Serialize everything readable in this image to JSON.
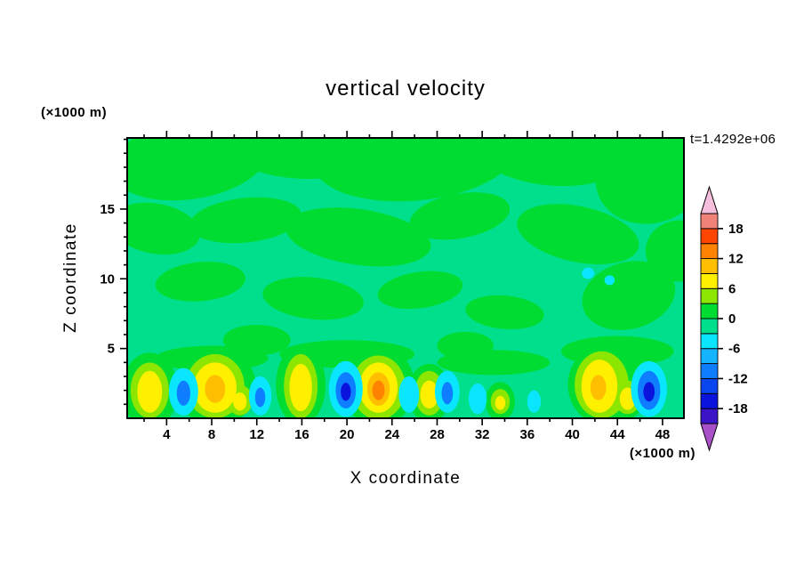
{
  "chart_data": {
    "type": "heatmap",
    "title": "vertical velocity",
    "annotation": "t=1.4292e+06",
    "xlabel": "X coordinate",
    "ylabel": "Z coordinate",
    "x_unit_label": "(×1000 m)",
    "y_unit_label": "(×1000 m)",
    "xlim": [
      0.5,
      49.9
    ],
    "ylim": [
      0,
      20.1
    ],
    "x_ticks": [
      4,
      8,
      12,
      16,
      20,
      24,
      28,
      32,
      36,
      40,
      44,
      48
    ],
    "y_ticks": [
      5,
      10,
      15
    ],
    "x_minor_step": 2,
    "y_minor_step": 1,
    "grid": false,
    "colorbar": {
      "position": "right",
      "labels": [
        18,
        12,
        6,
        0,
        -6,
        -12,
        -18
      ],
      "levels": [
        -21,
        -18,
        -15,
        -12,
        -9,
        -6,
        -3,
        0,
        3,
        6,
        9,
        12,
        15,
        18,
        21
      ],
      "band_colors_bottom_to_top": [
        "#3C14C8",
        "#0A14DC",
        "#0A46F0",
        "#0F7DFF",
        "#14B4FF",
        "#0AE6FF",
        "#00E08C",
        "#00DC32",
        "#8CE600",
        "#FFF000",
        "#FFBE00",
        "#FF8200",
        "#FF4600",
        "#F08278"
      ],
      "arrow_top_color": "#F5BEDC",
      "arrow_bottom_color": "#A850C8"
    },
    "field": {
      "background_color": "#00E08C",
      "palette": {
        "g": "#00DC32",
        "yg": "#8CE600",
        "y": "#FFF000",
        "oy": "#FFBE00",
        "o": "#FF8200",
        "c": "#0AE6FF",
        "b": "#0F7DFF",
        "db": "#0A14DC"
      },
      "patch_format": [
        "x",
        "z",
        "rx",
        "rz",
        "color_key",
        "rot_deg"
      ],
      "patches": [
        [
          6,
          18.5,
          7,
          2.8,
          "g",
          -8
        ],
        [
          15.5,
          19.6,
          7,
          2.4,
          "g",
          5
        ],
        [
          26,
          18.8,
          9,
          3.2,
          "g",
          -5
        ],
        [
          38,
          19.3,
          7,
          2.6,
          "g",
          6
        ],
        [
          47,
          17.4,
          5,
          3.4,
          "g",
          -18
        ],
        [
          3,
          13.6,
          4,
          1.8,
          "g",
          10
        ],
        [
          11,
          14.2,
          5,
          1.6,
          "g",
          -6
        ],
        [
          21,
          13,
          6.5,
          2,
          "g",
          8
        ],
        [
          30,
          14.5,
          4.5,
          1.6,
          "g",
          -10
        ],
        [
          40.5,
          13.2,
          5.5,
          2,
          "g",
          12
        ],
        [
          7,
          9.8,
          4,
          1.4,
          "g",
          -5
        ],
        [
          17,
          8.6,
          4.5,
          1.5,
          "g",
          6
        ],
        [
          26.5,
          9.2,
          3.8,
          1.3,
          "g",
          -8
        ],
        [
          34,
          7.6,
          3.5,
          1.2,
          "g",
          5
        ],
        [
          45,
          8.8,
          4.2,
          2.4,
          "g",
          -15
        ],
        [
          49.5,
          12,
          3,
          2.2,
          "g",
          0
        ],
        [
          12,
          5.6,
          3,
          1.1,
          "g",
          0
        ],
        [
          30.5,
          5.2,
          2.5,
          1,
          "g",
          0
        ],
        [
          8,
          4.3,
          5,
          0.9,
          "g",
          0
        ],
        [
          20,
          4.6,
          6,
          1,
          "g",
          0
        ],
        [
          33,
          4,
          5,
          0.9,
          "g",
          0
        ],
        [
          44,
          4.8,
          5,
          1.1,
          "g",
          0
        ],
        [
          2.5,
          2,
          2.5,
          2.7,
          "g",
          0
        ],
        [
          8.4,
          2.3,
          3.5,
          2.9,
          "g",
          0
        ],
        [
          15.9,
          2.4,
          2.2,
          2.9,
          "g",
          0
        ],
        [
          22.8,
          2.3,
          3.2,
          2.9,
          "g",
          0
        ],
        [
          27.3,
          1.8,
          1.9,
          2.1,
          "g",
          0
        ],
        [
          33.6,
          1.2,
          1.3,
          1.4,
          "g",
          0
        ],
        [
          43.2,
          2.4,
          3.6,
          3,
          "g",
          0
        ],
        [
          2.5,
          2,
          1.7,
          2,
          "yg",
          0
        ],
        [
          8.3,
          2.3,
          2.6,
          2.3,
          "yg",
          0
        ],
        [
          10.5,
          1.3,
          1.1,
          1.1,
          "yg",
          0
        ],
        [
          15.9,
          2.3,
          1.5,
          2.3,
          "yg",
          0
        ],
        [
          22.8,
          2.2,
          2.4,
          2.3,
          "yg",
          0
        ],
        [
          27.3,
          1.8,
          1.3,
          1.6,
          "yg",
          0
        ],
        [
          33.6,
          1.2,
          0.85,
          0.9,
          "yg",
          0
        ],
        [
          42.6,
          2.4,
          2.4,
          2.4,
          "yg",
          0
        ],
        [
          44.9,
          1.5,
          1.2,
          1.2,
          "yg",
          0
        ],
        [
          2.5,
          1.9,
          1.1,
          1.5,
          "y",
          0
        ],
        [
          8.3,
          2.2,
          1.9,
          1.8,
          "y",
          0
        ],
        [
          10.5,
          1.2,
          0.6,
          0.65,
          "y",
          0
        ],
        [
          15.9,
          2.2,
          1,
          1.7,
          "y",
          0
        ],
        [
          22.8,
          2.2,
          1.7,
          1.8,
          "y",
          0
        ],
        [
          27.3,
          1.7,
          0.8,
          1,
          "y",
          0
        ],
        [
          33.6,
          1.1,
          0.45,
          0.5,
          "y",
          0
        ],
        [
          42.4,
          2.3,
          1.6,
          1.9,
          "y",
          0
        ],
        [
          44.9,
          1.4,
          0.7,
          0.8,
          "y",
          0
        ],
        [
          8.3,
          2.1,
          0.9,
          1,
          "oy",
          0
        ],
        [
          22.8,
          2.1,
          1,
          1.2,
          "oy",
          0
        ],
        [
          22.8,
          2,
          0.55,
          0.7,
          "o",
          0
        ],
        [
          42.3,
          2.2,
          0.7,
          0.9,
          "oy",
          0
        ],
        [
          5.5,
          1.9,
          1.3,
          1.7,
          "c",
          0
        ],
        [
          12.3,
          1.6,
          1,
          1.4,
          "c",
          0
        ],
        [
          19.9,
          2.1,
          1.5,
          2,
          "c",
          0
        ],
        [
          25.5,
          1.7,
          0.9,
          1.3,
          "c",
          0
        ],
        [
          28.9,
          1.9,
          1.1,
          1.5,
          "c",
          0
        ],
        [
          31.6,
          1.4,
          0.8,
          1.1,
          "c",
          0
        ],
        [
          36.6,
          1.2,
          0.6,
          0.8,
          "c",
          0
        ],
        [
          46.8,
          2.1,
          1.6,
          2,
          "c",
          0
        ],
        [
          41.4,
          10.4,
          0.55,
          0.4,
          "c",
          0
        ],
        [
          43.3,
          9.9,
          0.45,
          0.35,
          "c",
          0
        ],
        [
          5.5,
          1.8,
          0.6,
          0.9,
          "b",
          0
        ],
        [
          12.3,
          1.5,
          0.45,
          0.7,
          "b",
          0
        ],
        [
          19.9,
          2,
          0.9,
          1.3,
          "b",
          0
        ],
        [
          28.9,
          1.8,
          0.5,
          0.8,
          "b",
          0
        ],
        [
          46.8,
          2,
          1,
          1.4,
          "b",
          0
        ],
        [
          19.9,
          1.9,
          0.45,
          0.65,
          "db",
          0
        ],
        [
          46.8,
          1.9,
          0.5,
          0.7,
          "db",
          0
        ]
      ]
    }
  }
}
